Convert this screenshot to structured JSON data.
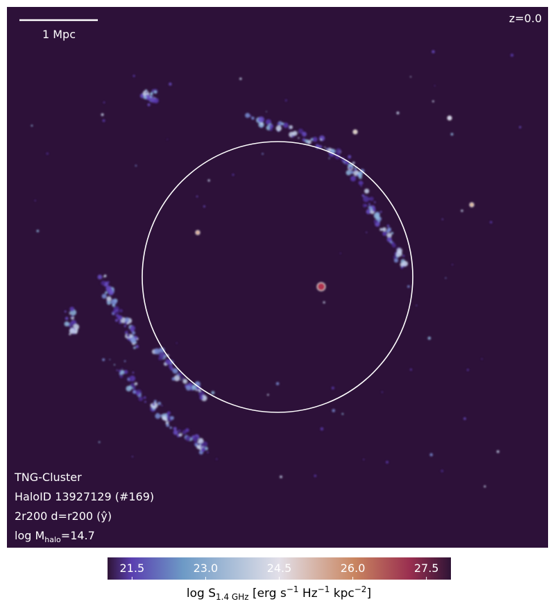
{
  "scale_bar": {
    "label": "1 Mpc"
  },
  "redshift": "z=0.0",
  "annotations": {
    "simulation": "TNG-Cluster",
    "halo_id": "HaloID 13927129 (#169)",
    "projection": "2r200 d=r200 (ŷ)",
    "mass_parts": [
      "log M",
      "halo",
      "=14.7"
    ]
  },
  "colorbar": {
    "lim": [
      21,
      28
    ],
    "ticks": [
      {
        "value": 21.5,
        "label": "21.5"
      },
      {
        "value": 23,
        "label": "23.0"
      },
      {
        "value": 24.5,
        "label": "24.5"
      },
      {
        "value": 26,
        "label": "26.0"
      },
      {
        "value": 27.5,
        "label": "27.5"
      }
    ],
    "label_parts": [
      "log S",
      "1.4 GHz",
      " [erg s",
      "−1",
      " Hz",
      "−1",
      " kpc",
      "−2",
      "]"
    ]
  }
}
